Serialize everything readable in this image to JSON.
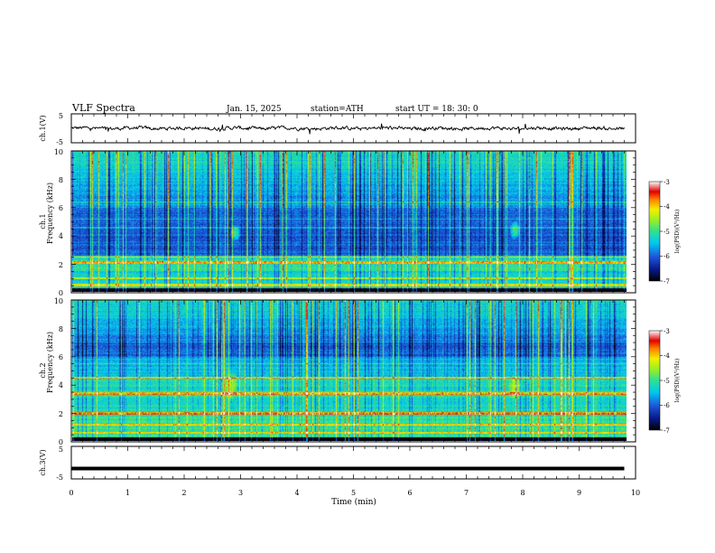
{
  "header": {
    "title": "VLF  Spectra",
    "date": "Jan. 15, 2025",
    "station": "station=ATH",
    "start": "start  UT  =   18: 30: 0"
  },
  "chart_data": [
    {
      "type": "line",
      "panel": "ch1-waveform",
      "ylabel": "ch.1(V)",
      "ylim": [
        -5,
        5
      ],
      "yticks": [
        "5",
        "-5"
      ],
      "xlim": [
        0,
        10
      ]
    },
    {
      "type": "heatmap",
      "panel": "ch1-spectrogram",
      "ylabel_line1": "ch.1",
      "ylabel_line2": "Frequency (kHz)",
      "ylim": [
        0,
        10
      ],
      "yticks": [
        "0",
        "2",
        "4",
        "6",
        "8",
        "10"
      ],
      "xlim": [
        0,
        10
      ],
      "data_end_min": 9.8,
      "colorbar": {
        "label": "log(PSD)(V²/Hz)",
        "range": [
          -7,
          -3
        ],
        "ticks": [
          "-3",
          "-4",
          "-5",
          "-6",
          "-7"
        ]
      }
    },
    {
      "type": "heatmap",
      "panel": "ch2-spectrogram",
      "ylabel_line1": "ch.2",
      "ylabel_line2": "Frequency (kHz)",
      "ylim": [
        0,
        10
      ],
      "yticks": [
        "0",
        "2",
        "4",
        "6",
        "8",
        "10"
      ],
      "xlim": [
        0,
        10
      ],
      "data_end_min": 9.8,
      "colorbar": {
        "label": "log(PSD)(V²/Hz)",
        "range": [
          -7,
          -3
        ],
        "ticks": [
          "-3",
          "-4",
          "-5",
          "-6",
          "-7"
        ]
      }
    },
    {
      "type": "line",
      "panel": "ch3-waveform",
      "ylabel": "ch.3(V)",
      "ylim": [
        -5,
        5
      ],
      "yticks": [
        "5",
        "-5"
      ],
      "xlim": [
        0,
        10
      ],
      "xlabel": "Time  (min)",
      "xticks": [
        "0",
        "1",
        "2",
        "3",
        "4",
        "5",
        "6",
        "7",
        "8",
        "9",
        "10"
      ],
      "series": [
        {
          "x": [
            0,
            9.8
          ],
          "y": [
            -1.8,
            -1.8
          ]
        }
      ]
    }
  ],
  "colors": {
    "colormap": [
      "#000000",
      "#0a1a8c",
      "#1e5adc",
      "#00c8f0",
      "#30e090",
      "#a0f020",
      "#f0f000",
      "#ff8000",
      "#e00000",
      "#ffffff"
    ],
    "trace": "#000000"
  }
}
